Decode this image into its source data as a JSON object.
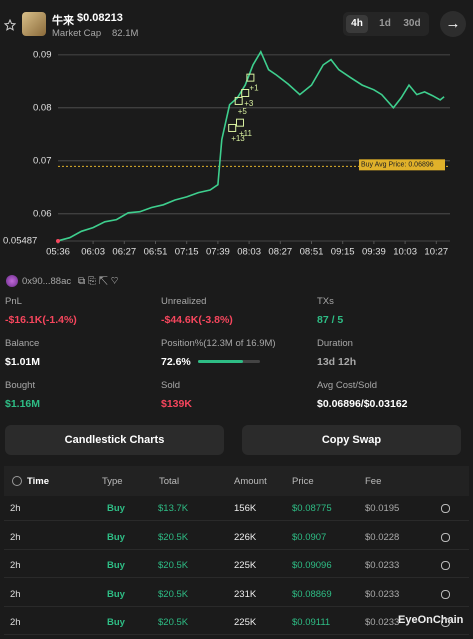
{
  "header": {
    "token": "牛来",
    "price": "$0.08213",
    "market_cap_label": "Market Cap",
    "market_cap": "82.1M",
    "tabs": [
      "4h",
      "1d",
      "30d"
    ]
  },
  "chart_data": {
    "type": "line",
    "series": [
      {
        "color": "#3ecf8e",
        "x": [
          "05:36",
          "05:45",
          "05:54",
          "06:03",
          "06:12",
          "06:21",
          "06:30",
          "06:39",
          "06:48",
          "06:57",
          "07:06",
          "07:15",
          "07:24",
          "07:33",
          "07:39",
          "07:42",
          "07:48",
          "07:54",
          "08:00",
          "08:06",
          "08:12",
          "08:18",
          "08:24",
          "08:33",
          "08:42",
          "08:51",
          "09:00",
          "09:06",
          "09:12",
          "09:21",
          "09:30",
          "09:39",
          "09:45",
          "09:54",
          "10:00",
          "10:06",
          "10:12",
          "10:18",
          "10:24",
          "10:30",
          "10:33"
        ],
        "values": [
          0.0549,
          0.0555,
          0.0567,
          0.0574,
          0.0585,
          0.0589,
          0.0602,
          0.0604,
          0.0612,
          0.0617,
          0.0626,
          0.0632,
          0.064,
          0.0645,
          0.0655,
          0.074,
          0.0806,
          0.0819,
          0.0843,
          0.0881,
          0.0906,
          0.0872,
          0.0862,
          0.0845,
          0.0825,
          0.0843,
          0.0881,
          0.0891,
          0.0872,
          0.0857,
          0.0843,
          0.0834,
          0.0825,
          0.08,
          0.0819,
          0.0843,
          0.0825,
          0.083,
          0.0823,
          0.0815,
          0.0821
        ]
      }
    ],
    "markers": [
      {
        "x": "07:50",
        "value": 0.0762,
        "label": "+13"
      },
      {
        "x": "07:56",
        "value": 0.0772,
        "label": "+11"
      },
      {
        "x": "07:55",
        "value": 0.0813,
        "label": "+5"
      },
      {
        "x": "08:00",
        "value": 0.0828,
        "label": "+3"
      },
      {
        "x": "08:04",
        "value": 0.0857,
        "label": "+1"
      }
    ],
    "avg_line": {
      "value": 0.06896,
      "label": "Buy Avg Price: 0.06896",
      "color": "#e0b12a"
    },
    "xlim": [
      "05:36",
      "10:36"
    ],
    "xticks": [
      "05:36",
      "06:03",
      "06:27",
      "06:51",
      "07:15",
      "07:39",
      "08:03",
      "08:27",
      "08:51",
      "09:15",
      "09:39",
      "10:03",
      "10:27"
    ],
    "ylim": [
      0.05487,
      0.0925
    ],
    "yticks": [
      0.05487,
      0.06,
      0.07,
      0.08,
      0.09
    ],
    "grid": true
  },
  "wallet": {
    "address": "0x90...88ac"
  },
  "stats": [
    {
      "label": "PnL",
      "value": "-$16.1K(-1.4%)",
      "color": "#f6465d"
    },
    {
      "label": "Unrealized",
      "value": "-$44.6K(-3.8%)",
      "color": "#f6465d"
    },
    {
      "label": "TXs",
      "value": "87 / 5",
      "color": "#2ebd85"
    },
    {
      "label": "Balance",
      "value": "$1.01M",
      "color": "#ffffff"
    },
    {
      "label": "Position%(12.3M of 16.9M)",
      "value": "72.6%",
      "percent": 72.6,
      "color": "#ffffff"
    },
    {
      "label": "Duration",
      "value": "13d 12h",
      "color": "#a8a8a8"
    },
    {
      "label": "Bought",
      "value": "$1.16M",
      "color": "#2ebd85"
    },
    {
      "label": "Sold",
      "value": "$139K",
      "color": "#f6465d"
    },
    {
      "label": "Avg Cost/Sold",
      "value": "$0.06896/$0.03162",
      "color": "#ffffff"
    }
  ],
  "buttons": [
    "Candlestick Charts",
    "Copy Swap"
  ],
  "table": {
    "columns": [
      "Time",
      "Type",
      "Total",
      "Amount",
      "Price",
      "Fee"
    ],
    "rows": [
      [
        "2h",
        "Buy",
        "$13.7K",
        "156K",
        "$0.08775",
        "$0.0195"
      ],
      [
        "2h",
        "Buy",
        "$20.5K",
        "226K",
        "$0.0907",
        "$0.0228"
      ],
      [
        "2h",
        "Buy",
        "$20.5K",
        "225K",
        "$0.09096",
        "$0.0233"
      ],
      [
        "2h",
        "Buy",
        "$20.5K",
        "231K",
        "$0.08869",
        "$0.0233"
      ],
      [
        "2h",
        "Buy",
        "$20.5K",
        "225K",
        "$0.09111",
        "$0.0233"
      ]
    ]
  },
  "watermark": "EyeOnChain"
}
